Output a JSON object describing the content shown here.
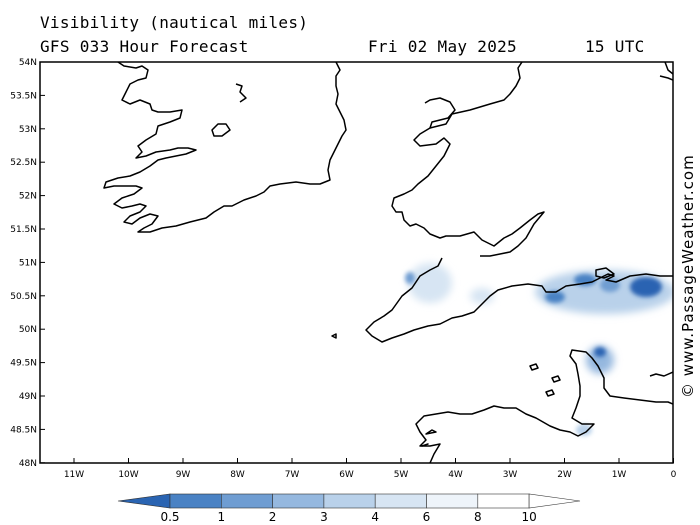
{
  "header": {
    "title": "Visibility (nautical miles)",
    "subtitle": "GFS 033 Hour Forecast",
    "date": "Fri 02 May 2025",
    "time": "15 UTC"
  },
  "credit": "© www.PassageWeather.com",
  "axes": {
    "lat_labels": [
      "54N",
      "53.5N",
      "53N",
      "52.5N",
      "52N",
      "51.5N",
      "51N",
      "50.5N",
      "50N",
      "49.5N",
      "49N",
      "48.5N",
      "48N"
    ],
    "lon_labels": [
      "11W",
      "10W",
      "9W",
      "8W",
      "7W",
      "6W",
      "5W",
      "4W",
      "3W",
      "2W",
      "1W",
      "0"
    ]
  },
  "colorbar": {
    "labels": [
      "0.5",
      "1",
      "2",
      "3",
      "4",
      "6",
      "8",
      "10"
    ],
    "colors": [
      "#2a64b2",
      "#4a82c4",
      "#6f9dd2",
      "#95b8df",
      "#b9d1ea",
      "#d7e5f3",
      "#eef4fa",
      "#ffffff"
    ]
  }
}
